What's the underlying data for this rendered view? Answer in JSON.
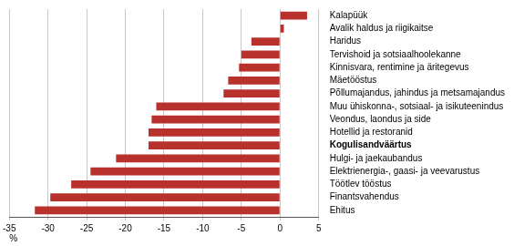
{
  "chart_data": {
    "type": "bar",
    "orientation": "horizontal",
    "x_label": "%",
    "categories": [
      "Kalapüük",
      "Avalik haldus ja riigikaitse",
      "Haridus",
      "Tervishoid ja sotsiaalhoolekanne",
      "Kinnisvara, rentimine ja äritegevus",
      "Mäetööstus",
      "Põllumajandus, jahindus ja metsamajandus",
      "Muu ühiskonna-, sotsiaal- ja isikuteenindus",
      "Veondus, laondus ja side",
      "Hotellid ja restoranid",
      "Kogulisandväärtus",
      "Hulgi- ja jaekaubandus",
      "Elektrienergia-, gaasi- ja veevarustus",
      "Töötlev tööstus",
      "Finantsvahendus",
      "Ehitus"
    ],
    "values": [
      3.5,
      0.5,
      -3.7,
      -5,
      -5.3,
      -6.7,
      -7.3,
      -16,
      -16.6,
      -17,
      -17,
      -21.2,
      -24.5,
      -27,
      -29.7,
      -31.7
    ],
    "color": "#b8312c",
    "xlim": [
      -35,
      5
    ],
    "xticks": [
      -35,
      -30,
      -25,
      -20,
      -15,
      -10,
      -5,
      0,
      5
    ],
    "grid": true
  }
}
